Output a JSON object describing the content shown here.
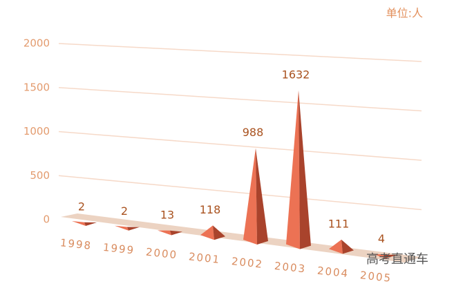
{
  "chart_data": {
    "type": "pyramid3d",
    "unit": "单位:人",
    "watermark": "高考直通车",
    "categories": [
      "1998",
      "1999",
      "2000",
      "2001",
      "2002",
      "2003",
      "2004",
      "2005"
    ],
    "values": [
      2,
      2,
      13,
      118,
      988,
      1632,
      111,
      4
    ],
    "ylim": [
      0,
      2000
    ],
    "yticks": [
      0,
      500,
      1000,
      1500,
      2000
    ],
    "grid": true,
    "color": "#ec7254",
    "shade_color": "#a9432c"
  }
}
